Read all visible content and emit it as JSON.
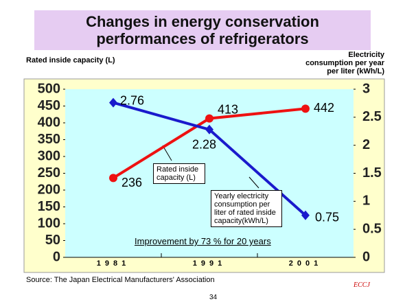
{
  "chart_data": {
    "type": "line",
    "title": "Changes in energy conservation performances of refrigerators",
    "y_label": "Rated inside capacity (L)",
    "y2_label": "Electricity consumption per year per liter (kWh/L)",
    "categories": [
      "1981",
      "1991",
      "2001"
    ],
    "series": [
      {
        "name": "Rated inside capacity (L)",
        "color": "#ee1111",
        "marker": "circle",
        "values": [
          236,
          413,
          442
        ]
      },
      {
        "name": "Yearly electricity consumption per liter of rated inside capacity(kWh/L)",
        "color": "#1a1acc",
        "marker": "diamond",
        "axis": "y2",
        "values": [
          2.76,
          2.28,
          0.75
        ]
      }
    ],
    "ylim": [
      0,
      500
    ],
    "yticks": [
      0,
      50,
      100,
      150,
      200,
      250,
      300,
      350,
      400,
      450,
      500
    ],
    "y2lim": [
      0,
      3
    ],
    "y2ticks": [
      0,
      0.5,
      1,
      1.5,
      2,
      2.5,
      3
    ],
    "annotation": "Improvement by 73 % for 20 years",
    "source": "Source: The Japan Electrical Manufacturers' Association",
    "page_number": "34",
    "logo": "ECCJ"
  }
}
